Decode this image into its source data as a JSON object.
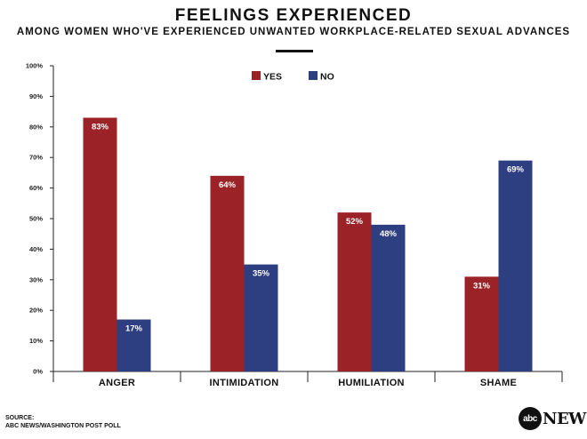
{
  "chart_data": {
    "type": "bar",
    "title": "FEELINGS EXPERIENCED",
    "subtitle": "AMONG WOMEN WHO'VE EXPERIENCED UNWANTED WORKPLACE-RELATED SEXUAL ADVANCES",
    "categories": [
      "ANGER",
      "INTIMIDATION",
      "HUMILIATION",
      "SHAME"
    ],
    "series": [
      {
        "name": "YES",
        "color": "#9b2226",
        "values": [
          83,
          64,
          52,
          31
        ],
        "labels": [
          "83%",
          "64%",
          "52%",
          "31%"
        ]
      },
      {
        "name": "NO",
        "color": "#2d3f80",
        "values": [
          17,
          35,
          48,
          69
        ],
        "labels": [
          "17%",
          "35%",
          "48%",
          "69%"
        ]
      }
    ],
    "ylim": [
      0,
      100
    ],
    "yticks": [
      "0%",
      "10%",
      "20%",
      "30%",
      "40%",
      "50%",
      "60%",
      "70%",
      "80%",
      "90%",
      "100%"
    ],
    "legend_position": "top-center",
    "grid": false
  },
  "footer": {
    "source_label": "SOURCE:",
    "source_text": "ABC NEWS/WASHINGTON POST POLL",
    "logo_circle": "abc",
    "logo_word": "NEWS"
  }
}
